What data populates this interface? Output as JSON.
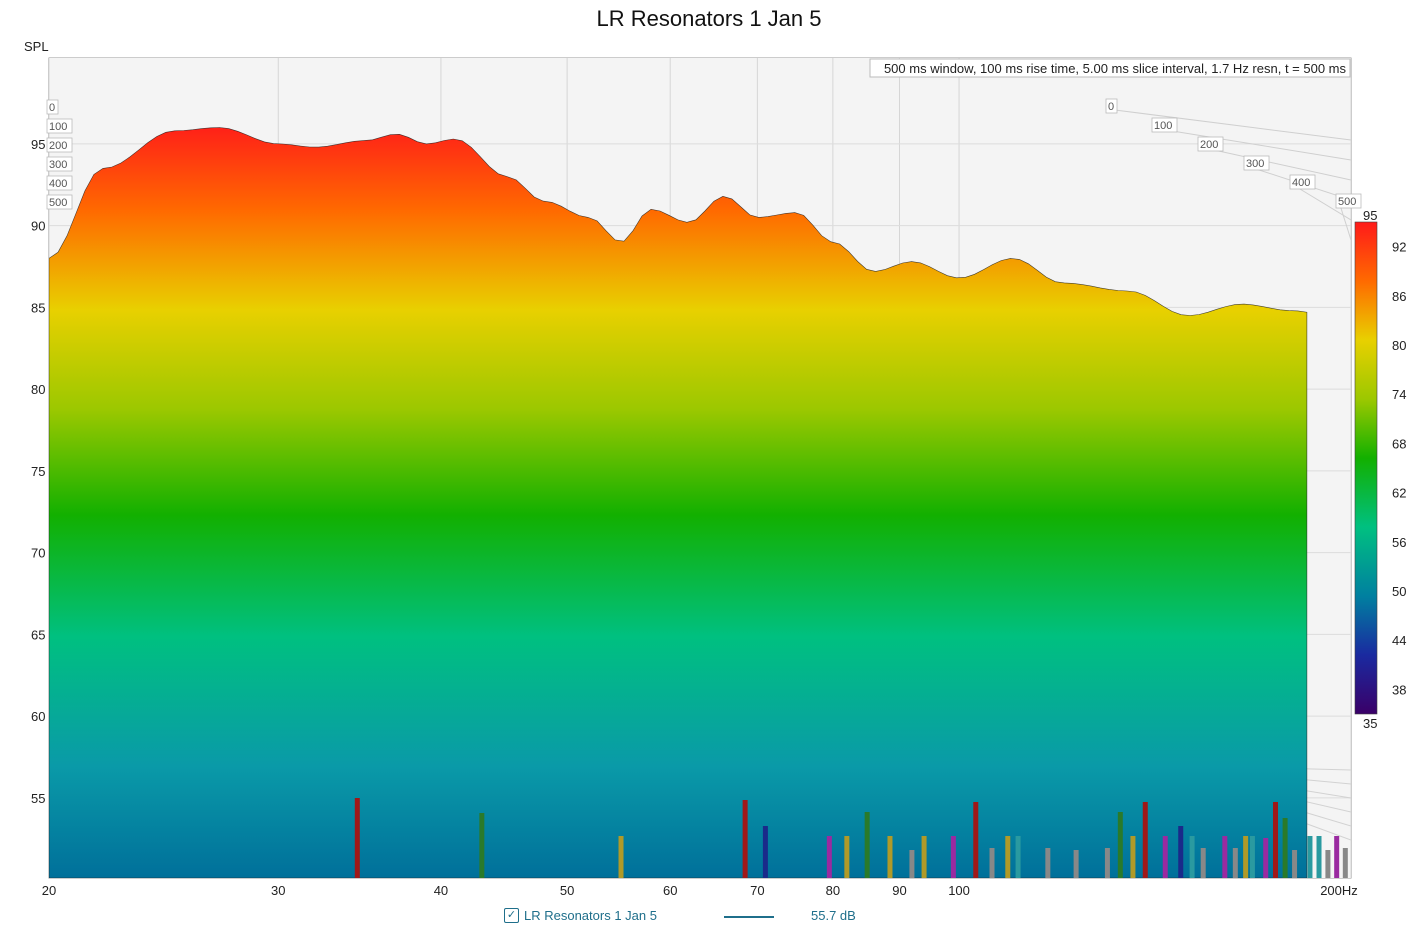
{
  "chart_data": {
    "type": "waterfall",
    "title": "LR Resonators 1 Jan 5",
    "ylabel": "SPL",
    "xunit": "Hz",
    "xlim": [
      20,
      200
    ],
    "xscale": "log",
    "ylim": [
      50,
      99
    ],
    "x_ticks": [
      "20",
      "30",
      "40",
      "50",
      "60",
      "70",
      "80",
      "90",
      "100",
      "200Hz"
    ],
    "y_ticks": [
      "55",
      "60",
      "65",
      "70",
      "75",
      "80",
      "85",
      "90",
      "95"
    ],
    "time_ms_ticks": [
      "0",
      "100",
      "200",
      "300",
      "400",
      "500"
    ],
    "settings_text": "500 ms window, 100 ms rise time, 5.00 ms slice interval, 1.7 Hz resn, t = 500 ms",
    "colorbar": {
      "range": [
        35,
        95
      ],
      "ticks": [
        "95",
        "92",
        "86",
        "80",
        "74",
        "68",
        "62",
        "56",
        "50",
        "44",
        "38",
        "35"
      ],
      "colors": [
        "#ff1a1a",
        "#ff6a00",
        "#e8d000",
        "#9cc800",
        "#12b000",
        "#00c080",
        "#0080a0",
        "#1a2aa0",
        "#3a0068"
      ]
    },
    "front_slice_t0": {
      "freq_hz": [
        20,
        22,
        25,
        27,
        30,
        32,
        35,
        37,
        39,
        41,
        45,
        48,
        52,
        55,
        58,
        62,
        66,
        70,
        75,
        80,
        86,
        92,
        100,
        110,
        120,
        135,
        150,
        165,
        180,
        200
      ],
      "spl_db": [
        88,
        93.5,
        95.8,
        96.0,
        95.0,
        94.8,
        95.2,
        95.6,
        95.0,
        95.3,
        93.0,
        91.5,
        90.5,
        89.0,
        91.0,
        90.2,
        91.8,
        90.5,
        90.8,
        89.0,
        87.2,
        87.8,
        86.8,
        88.0,
        86.5,
        86.0,
        84.5,
        85.2,
        84.8,
        84.2
      ]
    },
    "series": [
      {
        "name": "LR Resonators 1 Jan 5",
        "legend_value": "55.7 dB"
      }
    ],
    "legend_position": "bottom-center",
    "grid": true
  },
  "legend": {
    "check": "✓",
    "name": "LR Resonators 1 Jan 5",
    "value": "55.7 dB"
  }
}
